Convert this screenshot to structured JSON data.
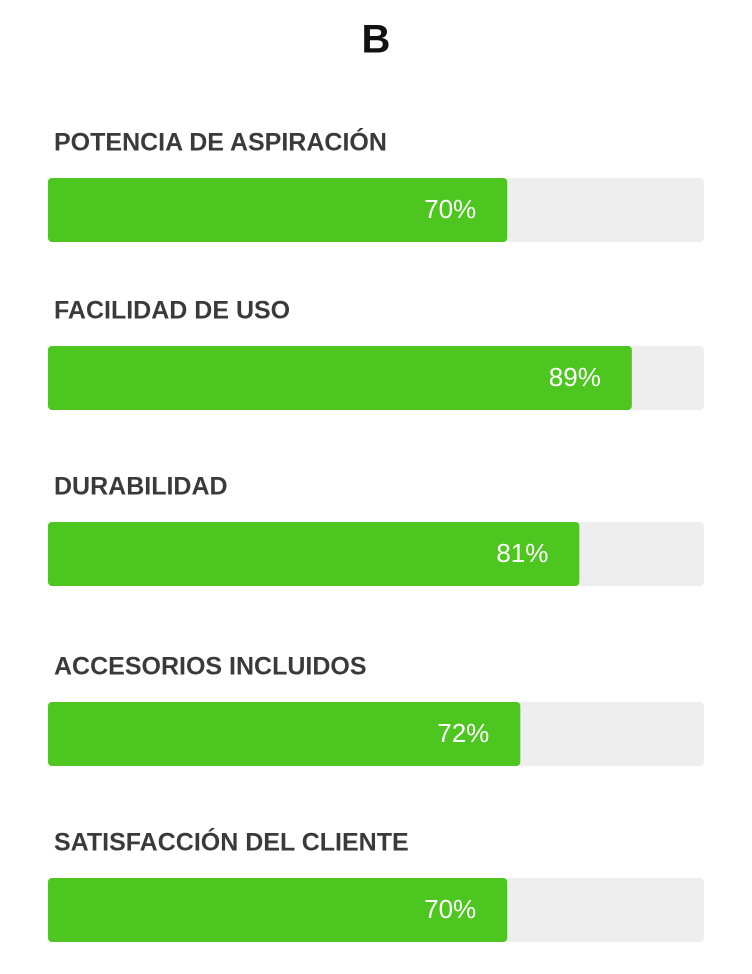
{
  "chart_data": {
    "type": "bar",
    "orientation": "horizontal",
    "title": "B",
    "categories": [
      "POTENCIA DE ASPIRACIÓN",
      "FACILIDAD DE USO",
      "DURABILIDAD",
      "ACCESORIOS INCLUIDOS",
      "SATISFACCIÓN DEL CLIENTE"
    ],
    "values": [
      70,
      89,
      81,
      72,
      70
    ],
    "value_labels": [
      "70%",
      "89%",
      "81%",
      "72%",
      "70%"
    ],
    "xlim": [
      0,
      100
    ],
    "color": "#4dc61f",
    "track_color": "#eeeeee"
  }
}
